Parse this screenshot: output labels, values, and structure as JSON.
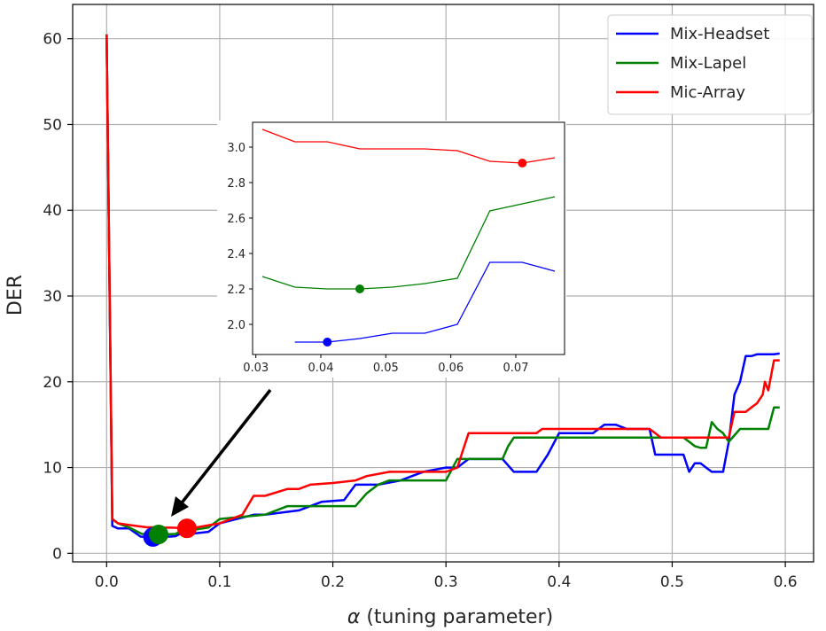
{
  "chart_data": {
    "type": "line",
    "xlabel_symbol": "α",
    "xlabel_text": " (tuning parameter)",
    "ylabel": "DER",
    "xlim": [
      -0.03,
      0.625
    ],
    "ylim": [
      -1,
      64
    ],
    "xticks": [
      0.0,
      0.1,
      0.2,
      0.3,
      0.4,
      0.5,
      0.6
    ],
    "xtick_labels": [
      "0.0",
      "0.1",
      "0.2",
      "0.3",
      "0.4",
      "0.5",
      "0.6"
    ],
    "yticks": [
      0,
      10,
      20,
      30,
      40,
      50,
      60
    ],
    "ytick_labels": [
      "0",
      "10",
      "20",
      "30",
      "40",
      "50",
      "60"
    ],
    "grid": true,
    "legend_position": "top-right",
    "series": [
      {
        "name": "Mix-Headset",
        "color": "#0000ff",
        "x": [
          0.0,
          0.005,
          0.01,
          0.02,
          0.03,
          0.036,
          0.041,
          0.046,
          0.051,
          0.056,
          0.061,
          0.066,
          0.071,
          0.076,
          0.09,
          0.1,
          0.13,
          0.14,
          0.17,
          0.19,
          0.21,
          0.22,
          0.24,
          0.26,
          0.27,
          0.28,
          0.3,
          0.31,
          0.32,
          0.33,
          0.35,
          0.36,
          0.38,
          0.39,
          0.4,
          0.43,
          0.44,
          0.45,
          0.46,
          0.48,
          0.485,
          0.49,
          0.5,
          0.51,
          0.515,
          0.52,
          0.525,
          0.53,
          0.535,
          0.54,
          0.545,
          0.55,
          0.555,
          0.56,
          0.565,
          0.57,
          0.575,
          0.58,
          0.59,
          0.595
        ],
        "y": [
          60.5,
          3.2,
          2.9,
          2.9,
          1.95,
          1.9,
          1.9,
          1.92,
          1.95,
          1.95,
          2.0,
          2.35,
          2.35,
          2.3,
          2.5,
          3.5,
          4.5,
          4.5,
          5.0,
          6.0,
          6.2,
          8.0,
          8.0,
          8.5,
          9.0,
          9.5,
          10.0,
          10.0,
          11.0,
          11.0,
          11.0,
          9.5,
          9.5,
          11.5,
          14.0,
          14.0,
          15.0,
          15.0,
          14.5,
          14.5,
          11.5,
          11.5,
          11.5,
          11.5,
          9.5,
          10.5,
          10.5,
          10.0,
          9.5,
          9.5,
          9.5,
          13.0,
          18.5,
          20.0,
          23.0,
          23.0,
          23.2,
          23.2,
          23.2,
          23.3
        ]
      },
      {
        "name": "Mix-Lapel",
        "color": "#008000",
        "x": [
          0.0,
          0.005,
          0.01,
          0.02,
          0.031,
          0.036,
          0.041,
          0.046,
          0.051,
          0.056,
          0.061,
          0.066,
          0.071,
          0.076,
          0.09,
          0.1,
          0.14,
          0.16,
          0.18,
          0.2,
          0.22,
          0.23,
          0.24,
          0.25,
          0.3,
          0.31,
          0.32,
          0.35,
          0.355,
          0.36,
          0.38,
          0.4,
          0.43,
          0.46,
          0.49,
          0.51,
          0.515,
          0.52,
          0.525,
          0.53,
          0.535,
          0.54,
          0.545,
          0.55,
          0.56,
          0.57,
          0.58,
          0.585,
          0.59,
          0.595
        ],
        "y": [
          60.5,
          4.0,
          3.5,
          3.0,
          2.27,
          2.21,
          2.2,
          2.2,
          2.21,
          2.23,
          2.26,
          2.64,
          2.68,
          2.72,
          3.0,
          4.0,
          4.5,
          5.5,
          5.5,
          5.5,
          5.5,
          7.0,
          8.0,
          8.5,
          8.5,
          11.0,
          11.0,
          11.0,
          12.5,
          13.5,
          13.5,
          13.5,
          13.5,
          13.5,
          13.5,
          13.5,
          13.0,
          12.5,
          12.3,
          12.3,
          15.3,
          14.5,
          14.0,
          13.0,
          14.5,
          14.5,
          14.5,
          14.5,
          17.0,
          17.0
        ]
      },
      {
        "name": "Mic-Array",
        "color": "#ff0000",
        "x": [
          0.0,
          0.005,
          0.01,
          0.02,
          0.031,
          0.036,
          0.041,
          0.046,
          0.051,
          0.056,
          0.061,
          0.066,
          0.071,
          0.076,
          0.1,
          0.12,
          0.13,
          0.14,
          0.16,
          0.17,
          0.18,
          0.2,
          0.22,
          0.23,
          0.25,
          0.28,
          0.3,
          0.31,
          0.315,
          0.32,
          0.36,
          0.38,
          0.385,
          0.39,
          0.42,
          0.48,
          0.485,
          0.49,
          0.55,
          0.555,
          0.56,
          0.565,
          0.57,
          0.575,
          0.58,
          0.582,
          0.585,
          0.59,
          0.595
        ],
        "y": [
          60.5,
          4.0,
          3.5,
          3.3,
          3.1,
          3.03,
          3.03,
          2.99,
          2.99,
          2.99,
          2.98,
          2.92,
          2.91,
          2.94,
          3.5,
          4.5,
          6.7,
          6.7,
          7.5,
          7.5,
          8.0,
          8.2,
          8.5,
          9.0,
          9.5,
          9.5,
          9.5,
          10.0,
          12.0,
          14.0,
          14.0,
          14.0,
          14.5,
          14.5,
          14.5,
          14.5,
          14.0,
          13.5,
          13.5,
          16.5,
          16.5,
          16.5,
          17.0,
          17.5,
          18.5,
          20.0,
          19.0,
          22.5,
          22.5
        ]
      }
    ],
    "minima": [
      {
        "series": "Mix-Headset",
        "x": 0.041,
        "y": 1.9,
        "color": "#0000ff"
      },
      {
        "series": "Mix-Lapel",
        "x": 0.046,
        "y": 2.2,
        "color": "#008000"
      },
      {
        "series": "Mic-Array",
        "x": 0.071,
        "y": 2.91,
        "color": "#ff0000"
      }
    ],
    "inset": {
      "xlim": [
        0.0295,
        0.0775
      ],
      "ylim": [
        1.83,
        3.14
      ],
      "xticks": [
        0.03,
        0.04,
        0.05,
        0.06,
        0.07
      ],
      "xtick_labels": [
        "0.03",
        "0.04",
        "0.05",
        "0.06",
        "0.07"
      ],
      "yticks": [
        2.0,
        2.2,
        2.4,
        2.6,
        2.8,
        3.0
      ],
      "ytick_labels": [
        "2.0",
        "2.2",
        "2.4",
        "2.6",
        "2.8",
        "3.0"
      ]
    }
  }
}
